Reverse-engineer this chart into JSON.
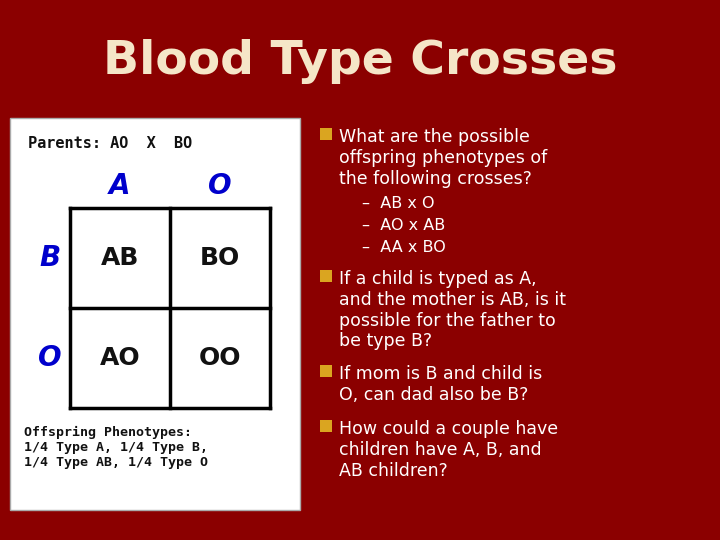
{
  "title": "Blood Type Crosses",
  "title_color": "#F5E6C8",
  "title_fontsize": 34,
  "bg_color": "#8B0000",
  "panel_bg": "#FFFFFF",
  "parents_text": "Parents: AO  X  BO",
  "col_headers": [
    "A",
    "O"
  ],
  "row_headers": [
    "B",
    "O"
  ],
  "cells": [
    [
      "AB",
      "BO"
    ],
    [
      "AO",
      "OO"
    ]
  ],
  "offspring_text": "Offspring Phenotypes:\n1/4 Type A, 1/4 Type B,\n1/4 Type AB, 1/4 Type O",
  "blue_color": "#0000CC",
  "bullet_color": "#DAA520",
  "bullet1_text": "What are the possible\noffspring phenotypes of\nthe following crosses?",
  "sub_bullets": [
    "–  AB x O",
    "–  AO x AB",
    "–  AA x BO"
  ],
  "bullet2_text": "If a child is typed as A,\nand the mother is AB, is it\npossible for the father to\nbe type B?",
  "bullet3_text": "If mom is B and child is\nO, can dad also be B?",
  "bullet4_text": "How could a couple have\nchildren have A, B, and\nAB children?",
  "text_color": "#FFFFFF",
  "body_fontsize": 12.5,
  "sub_fontsize": 11.5,
  "panel_header_fontsize": 11,
  "cell_fontsize": 18,
  "header_fontsize": 20
}
